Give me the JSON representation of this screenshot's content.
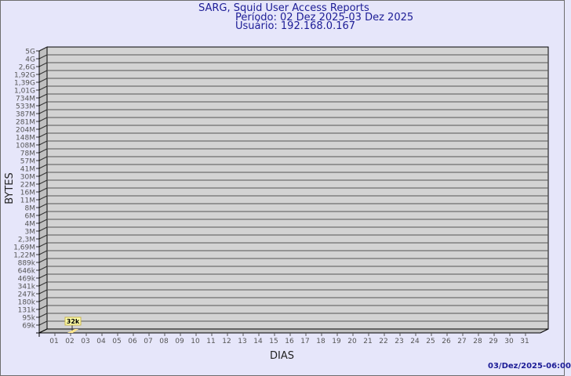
{
  "chart_data": {
    "type": "bar",
    "title": "SARG, Squid User Access Reports",
    "subtitle_period": "Período: 02 Dez 2025-03 Dez 2025",
    "subtitle_user": "Usuário: 192.168.0.167",
    "xlabel": "DIAS",
    "ylabel": "BYTES",
    "y_scale": "log",
    "grid": true,
    "y_tick_labels": [
      "5G",
      "4G",
      "2,6G",
      "1,92G",
      "1,39G",
      "1,01G",
      "734M",
      "533M",
      "387M",
      "281M",
      "204M",
      "148M",
      "108M",
      "78M",
      "57M",
      "41M",
      "30M",
      "22M",
      "16M",
      "11M",
      "8M",
      "6M",
      "4M",
      "3M",
      "2,3M",
      "1,69M",
      "1,22M",
      "889k",
      "646k",
      "469k",
      "341k",
      "247k",
      "180k",
      "131k",
      "95k",
      "69k"
    ],
    "categories": [
      "01",
      "02",
      "03",
      "04",
      "05",
      "06",
      "07",
      "08",
      "09",
      "10",
      "11",
      "12",
      "13",
      "14",
      "15",
      "16",
      "17",
      "18",
      "19",
      "20",
      "21",
      "22",
      "23",
      "24",
      "25",
      "26",
      "27",
      "28",
      "29",
      "30",
      "31"
    ],
    "values": [
      null,
      32000,
      null,
      null,
      null,
      null,
      null,
      null,
      null,
      null,
      null,
      null,
      null,
      null,
      null,
      null,
      null,
      null,
      null,
      null,
      null,
      null,
      null,
      null,
      null,
      null,
      null,
      null,
      null,
      null,
      null
    ],
    "data_labels": {
      "02": "32k"
    },
    "colors": {
      "background": "#e6e6fa",
      "wall": "#d3d3d3",
      "side_wall": "#c0c0c0",
      "bar": "#ffe68c",
      "label_box": "#ffffa8",
      "title": "#1c1c96"
    }
  },
  "footer": {
    "timestamp": "03/Dez/2025-06:00"
  }
}
